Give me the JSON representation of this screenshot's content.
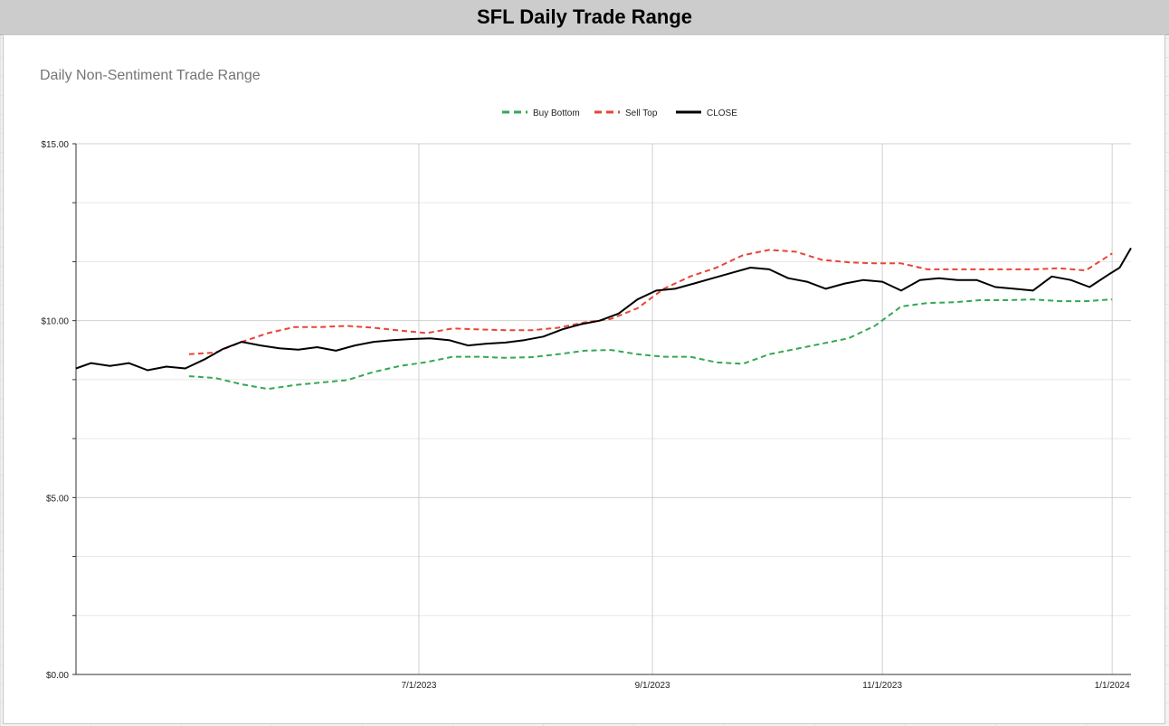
{
  "window": {
    "header_title": "SFL Daily Trade Range"
  },
  "chart_data": {
    "type": "line",
    "title": "Daily Non-Sentiment Trade Range",
    "xlabel": "",
    "ylabel": "",
    "ylim": [
      0,
      15
    ],
    "x_range": [
      "2023-04-01",
      "2024-01-06"
    ],
    "y_ticks": [
      0,
      5,
      10,
      15
    ],
    "y_tick_labels": [
      "$0.00",
      "$5.00",
      "$10.00",
      "$15.00"
    ],
    "x_ticks": [
      "2023-07-01",
      "2023-09-01",
      "2023-11-01",
      "2024-01-01"
    ],
    "x_tick_labels": [
      "7/1/2023",
      "9/1/2023",
      "11/1/2023",
      "1/1/2024"
    ],
    "grid": true,
    "legend_position": "top-center",
    "series": [
      {
        "name": "Buy Bottom",
        "color": "#34a853",
        "dash": "dashed",
        "points": [
          [
            "2023-05-01",
            8.43
          ],
          [
            "2023-05-08",
            8.38
          ],
          [
            "2023-05-15",
            8.2
          ],
          [
            "2023-05-22",
            8.07
          ],
          [
            "2023-05-29",
            8.18
          ],
          [
            "2023-06-05",
            8.25
          ],
          [
            "2023-06-12",
            8.32
          ],
          [
            "2023-06-19",
            8.55
          ],
          [
            "2023-06-26",
            8.72
          ],
          [
            "2023-07-03",
            8.83
          ],
          [
            "2023-07-10",
            8.98
          ],
          [
            "2023-07-17",
            8.98
          ],
          [
            "2023-07-24",
            8.95
          ],
          [
            "2023-07-31",
            8.97
          ],
          [
            "2023-08-07",
            9.05
          ],
          [
            "2023-08-14",
            9.15
          ],
          [
            "2023-08-21",
            9.17
          ],
          [
            "2023-08-28",
            9.05
          ],
          [
            "2023-09-04",
            8.98
          ],
          [
            "2023-09-11",
            8.98
          ],
          [
            "2023-09-18",
            8.82
          ],
          [
            "2023-09-25",
            8.78
          ],
          [
            "2023-10-02",
            9.05
          ],
          [
            "2023-10-09",
            9.2
          ],
          [
            "2023-10-16",
            9.35
          ],
          [
            "2023-10-23",
            9.5
          ],
          [
            "2023-10-30",
            9.85
          ],
          [
            "2023-11-06",
            10.4
          ],
          [
            "2023-11-13",
            10.5
          ],
          [
            "2023-11-20",
            10.52
          ],
          [
            "2023-11-27",
            10.58
          ],
          [
            "2023-12-04",
            10.58
          ],
          [
            "2023-12-11",
            10.6
          ],
          [
            "2023-12-18",
            10.55
          ],
          [
            "2023-12-25",
            10.55
          ],
          [
            "2024-01-01",
            10.6
          ]
        ]
      },
      {
        "name": "Sell Top",
        "color": "#ea4335",
        "dash": "dashed",
        "points": [
          [
            "2023-05-01",
            9.05
          ],
          [
            "2023-05-08",
            9.1
          ],
          [
            "2023-05-15",
            9.4
          ],
          [
            "2023-05-22",
            9.65
          ],
          [
            "2023-05-29",
            9.82
          ],
          [
            "2023-06-05",
            9.82
          ],
          [
            "2023-06-12",
            9.85
          ],
          [
            "2023-06-19",
            9.8
          ],
          [
            "2023-06-26",
            9.72
          ],
          [
            "2023-07-03",
            9.65
          ],
          [
            "2023-07-10",
            9.78
          ],
          [
            "2023-07-17",
            9.75
          ],
          [
            "2023-07-24",
            9.73
          ],
          [
            "2023-07-31",
            9.73
          ],
          [
            "2023-08-07",
            9.8
          ],
          [
            "2023-08-14",
            9.95
          ],
          [
            "2023-08-21",
            10.05
          ],
          [
            "2023-08-28",
            10.35
          ],
          [
            "2023-09-04",
            10.9
          ],
          [
            "2023-09-11",
            11.25
          ],
          [
            "2023-09-18",
            11.5
          ],
          [
            "2023-09-25",
            11.85
          ],
          [
            "2023-10-02",
            12.0
          ],
          [
            "2023-10-09",
            11.95
          ],
          [
            "2023-10-16",
            11.72
          ],
          [
            "2023-10-23",
            11.65
          ],
          [
            "2023-10-30",
            11.62
          ],
          [
            "2023-11-06",
            11.62
          ],
          [
            "2023-11-13",
            11.45
          ],
          [
            "2023-11-20",
            11.45
          ],
          [
            "2023-11-27",
            11.45
          ],
          [
            "2023-12-04",
            11.45
          ],
          [
            "2023-12-11",
            11.45
          ],
          [
            "2023-12-18",
            11.48
          ],
          [
            "2023-12-25",
            11.42
          ],
          [
            "2024-01-01",
            11.9
          ]
        ]
      },
      {
        "name": "CLOSE",
        "color": "#000000",
        "dash": "solid",
        "points": [
          [
            "2023-04-01",
            8.65
          ],
          [
            "2023-04-05",
            8.8
          ],
          [
            "2023-04-10",
            8.72
          ],
          [
            "2023-04-15",
            8.8
          ],
          [
            "2023-04-20",
            8.6
          ],
          [
            "2023-04-25",
            8.7
          ],
          [
            "2023-04-30",
            8.65
          ],
          [
            "2023-05-05",
            8.9
          ],
          [
            "2023-05-10",
            9.2
          ],
          [
            "2023-05-15",
            9.4
          ],
          [
            "2023-05-20",
            9.3
          ],
          [
            "2023-05-25",
            9.22
          ],
          [
            "2023-05-30",
            9.18
          ],
          [
            "2023-06-04",
            9.25
          ],
          [
            "2023-06-09",
            9.15
          ],
          [
            "2023-06-14",
            9.3
          ],
          [
            "2023-06-19",
            9.4
          ],
          [
            "2023-06-24",
            9.45
          ],
          [
            "2023-06-29",
            9.48
          ],
          [
            "2023-07-04",
            9.5
          ],
          [
            "2023-07-09",
            9.45
          ],
          [
            "2023-07-14",
            9.3
          ],
          [
            "2023-07-19",
            9.35
          ],
          [
            "2023-07-24",
            9.38
          ],
          [
            "2023-07-29",
            9.45
          ],
          [
            "2023-08-03",
            9.55
          ],
          [
            "2023-08-08",
            9.75
          ],
          [
            "2023-08-13",
            9.9
          ],
          [
            "2023-08-18",
            10.0
          ],
          [
            "2023-08-23",
            10.2
          ],
          [
            "2023-08-28",
            10.6
          ],
          [
            "2023-09-02",
            10.85
          ],
          [
            "2023-09-07",
            10.9
          ],
          [
            "2023-09-12",
            11.05
          ],
          [
            "2023-09-17",
            11.2
          ],
          [
            "2023-09-22",
            11.35
          ],
          [
            "2023-09-27",
            11.5
          ],
          [
            "2023-10-02",
            11.45
          ],
          [
            "2023-10-07",
            11.2
          ],
          [
            "2023-10-12",
            11.1
          ],
          [
            "2023-10-17",
            10.9
          ],
          [
            "2023-10-22",
            11.05
          ],
          [
            "2023-10-27",
            11.15
          ],
          [
            "2023-11-01",
            11.1
          ],
          [
            "2023-11-06",
            10.85
          ],
          [
            "2023-11-11",
            11.15
          ],
          [
            "2023-11-16",
            11.2
          ],
          [
            "2023-11-21",
            11.15
          ],
          [
            "2023-11-26",
            11.15
          ],
          [
            "2023-12-01",
            10.95
          ],
          [
            "2023-12-06",
            10.9
          ],
          [
            "2023-12-11",
            10.85
          ],
          [
            "2023-12-16",
            11.25
          ],
          [
            "2023-12-21",
            11.15
          ],
          [
            "2023-12-26",
            10.95
          ],
          [
            "2023-12-31",
            11.3
          ],
          [
            "2024-01-03",
            11.5
          ],
          [
            "2024-01-06",
            12.05
          ]
        ]
      }
    ]
  }
}
